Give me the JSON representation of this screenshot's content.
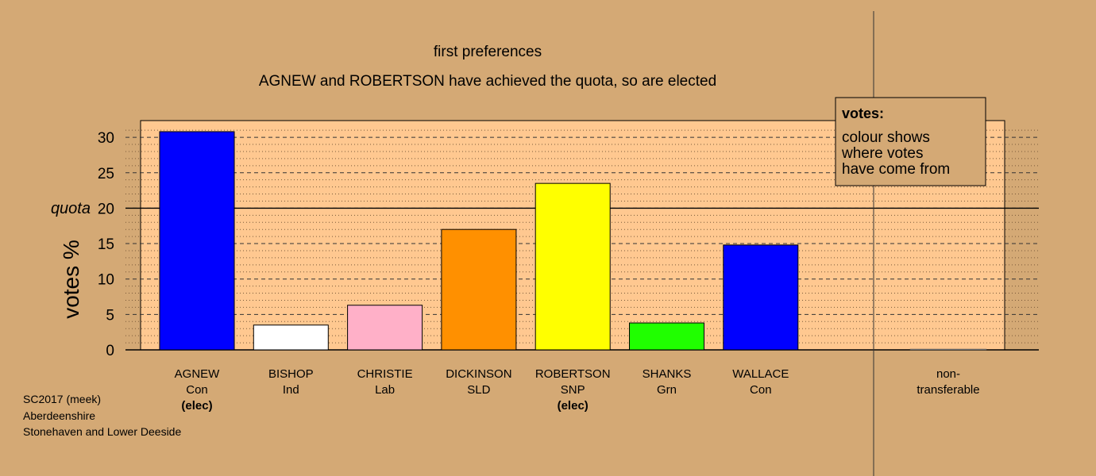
{
  "chart_data": {
    "type": "bar",
    "title": "first preferences",
    "subtitle": "AGNEW and ROBERTSON have achieved the quota, so are elected",
    "ylabel": "votes %",
    "ylim": [
      0,
      32
    ],
    "yticks": [
      0,
      5,
      10,
      15,
      20,
      25,
      30
    ],
    "quota": 20,
    "quota_label": "quota",
    "bars": [
      {
        "name": "AGNEW",
        "party": "Con",
        "status": "(elec)",
        "value": 30.8,
        "color": "#0000ff"
      },
      {
        "name": "BISHOP",
        "party": "Ind",
        "status": "",
        "value": 3.5,
        "color": "#ffffff"
      },
      {
        "name": "CHRISTIE",
        "party": "Lab",
        "status": "",
        "value": 6.3,
        "color": "#ffb0c8"
      },
      {
        "name": "DICKINSON",
        "party": "SLD",
        "status": "",
        "value": 17.0,
        "color": "#ff9000"
      },
      {
        "name": "ROBERTSON",
        "party": "SNP",
        "status": "(elec)",
        "value": 23.5,
        "color": "#ffff00"
      },
      {
        "name": "SHANKS",
        "party": "Grn",
        "status": "",
        "value": 3.8,
        "color": "#20ff00"
      },
      {
        "name": "WALLACE",
        "party": "Con",
        "status": "",
        "value": 14.8,
        "color": "#0000ff"
      }
    ],
    "nontransferable": {
      "label_line1": "non-",
      "label_line2": "transferable",
      "value": 0
    }
  },
  "legend": {
    "title": "votes:",
    "lines": [
      "colour shows",
      "where votes",
      "have come from"
    ]
  },
  "footer": {
    "lines": [
      "SC2017 (meek)",
      "Aberdeenshire",
      "Stonehaven and Lower Deeside"
    ]
  },
  "colors": {
    "background": "#d4a975",
    "plot_area": "#ffc890"
  }
}
